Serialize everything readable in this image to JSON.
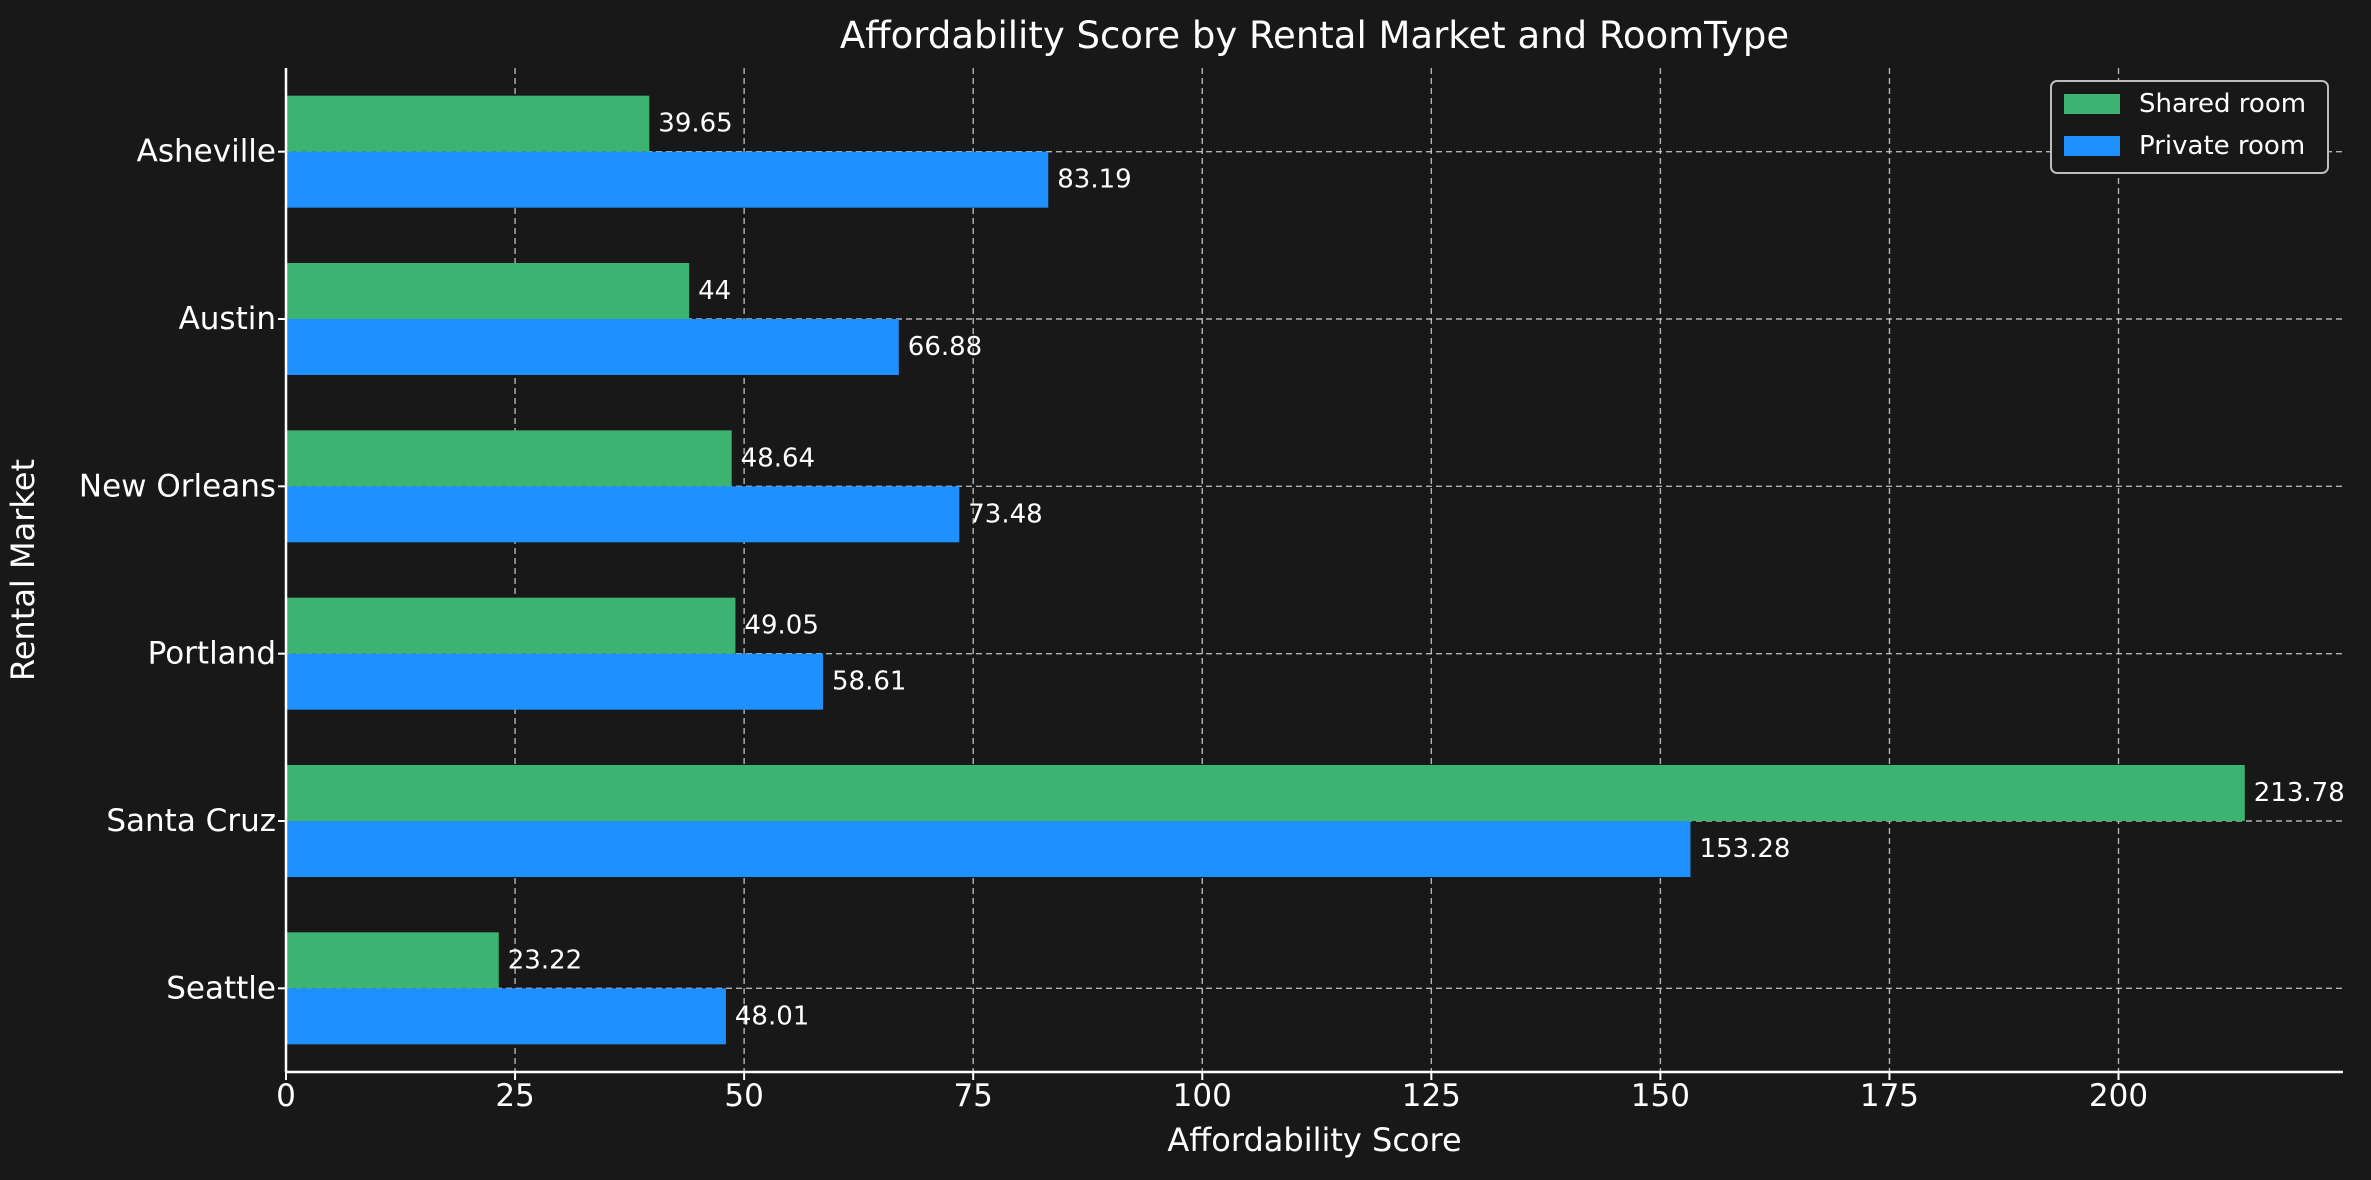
{
  "chart_data": {
    "type": "bar",
    "orientation": "horizontal",
    "title": "Affordability Score by Rental Market and RoomType",
    "xlabel": "Affordability Score",
    "ylabel": "Rental Market",
    "categories": [
      "Asheville",
      "Austin",
      "New Orleans",
      "Portland",
      "Santa Cruz",
      "Seattle"
    ],
    "series": [
      {
        "name": "Shared room",
        "color": "#3cb371",
        "values": [
          39.65,
          44,
          48.64,
          49.05,
          213.78,
          23.22
        ],
        "labels": [
          "39.65",
          "44",
          "48.64",
          "49.05",
          "213.78",
          "23.22"
        ]
      },
      {
        "name": "Private room",
        "color": "#1e90ff",
        "values": [
          83.19,
          66.88,
          73.48,
          58.61,
          153.28,
          48.01
        ],
        "labels": [
          "83.19",
          "66.88",
          "73.48",
          "58.61",
          "153.28",
          "48.01"
        ]
      }
    ],
    "xlim": [
      0,
      224.5
    ],
    "xticks": [
      0,
      25,
      50,
      75,
      100,
      125,
      150,
      175,
      200
    ],
    "xtick_labels": [
      "0",
      "25",
      "50",
      "75",
      "100",
      "125",
      "150",
      "175",
      "200"
    ],
    "grid": true,
    "legend_position": "top-right",
    "background": "#181818",
    "text_color": "#ffffff"
  }
}
